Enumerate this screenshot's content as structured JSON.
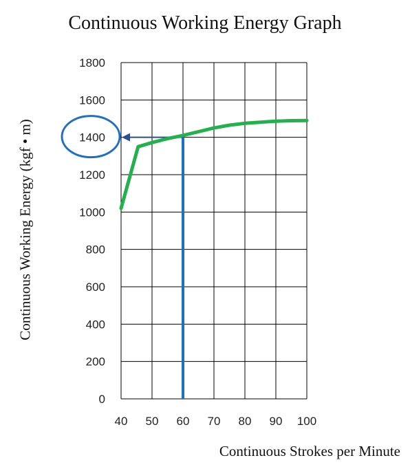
{
  "chart_data": {
    "type": "line",
    "title": "Continuous Working Energy Graph",
    "xlabel": "Continuous Strokes per Minute",
    "ylabel": "Continuous Working Energy (kgf • m)",
    "x_ticks": [
      "40",
      "50",
      "60",
      "70",
      "80",
      "90",
      "100"
    ],
    "y_ticks": [
      "0",
      "200",
      "400",
      "600",
      "800",
      "1000",
      "1200",
      "1400",
      "1600",
      "1800"
    ],
    "xlim": [
      40,
      100
    ],
    "ylim": [
      0,
      1800
    ],
    "grid": true,
    "series": [
      {
        "color": "#22b14c",
        "x": [
          40,
          45.5,
          50,
          55,
          60,
          65,
          70,
          75,
          80,
          85,
          90,
          95,
          100
        ],
        "y": [
          1020,
          1350,
          1372,
          1393,
          1410,
          1430,
          1450,
          1465,
          1475,
          1481,
          1486,
          1489,
          1490
        ]
      }
    ],
    "annotations": {
      "reference_x": 60,
      "reference_y": 1400,
      "highlighted_tick": "1400",
      "reference_color": "#1f6fc5",
      "arrow_color": "#2f4b93"
    }
  }
}
